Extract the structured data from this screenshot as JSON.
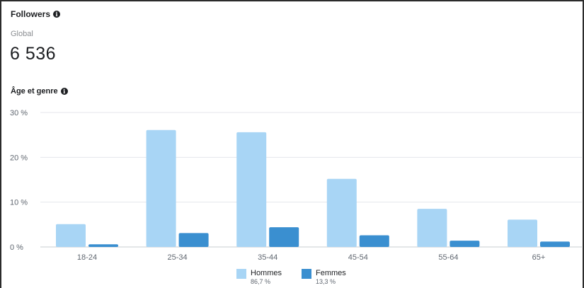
{
  "header": {
    "title": "Followers",
    "info_icon": "info-icon",
    "scope": "Global",
    "total": "6 536"
  },
  "section": {
    "title": "Âge et genre",
    "info_icon": "info-icon"
  },
  "colors": {
    "hommes": "#a8d5f5",
    "femmes": "#3a8fd0",
    "grid": "#e4e6eb",
    "axis": "#c8ccd1"
  },
  "chart_data": {
    "type": "bar",
    "title": "Âge et genre",
    "categories": [
      "18-24",
      "25-34",
      "35-44",
      "45-54",
      "55-64",
      "65+"
    ],
    "y_ticks": [
      "0 %",
      "10 %",
      "20 %",
      "30 %"
    ],
    "ylim": [
      0,
      30
    ],
    "grid": true,
    "legend_position": "bottom",
    "series": [
      {
        "name": "Hommes",
        "share": "86,7 %",
        "values": [
          5.1,
          26.1,
          25.6,
          15.2,
          8.5,
          6.1
        ]
      },
      {
        "name": "Femmes",
        "share": "13,3 %",
        "values": [
          0.6,
          3.1,
          4.4,
          2.6,
          1.4,
          1.2
        ]
      }
    ]
  }
}
